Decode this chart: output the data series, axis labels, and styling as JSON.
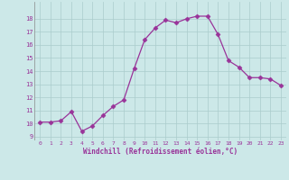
{
  "x": [
    0,
    1,
    2,
    3,
    4,
    5,
    6,
    7,
    8,
    9,
    10,
    11,
    12,
    13,
    14,
    15,
    16,
    17,
    18,
    19,
    20,
    21,
    22,
    23
  ],
  "y": [
    10.1,
    10.1,
    10.2,
    10.9,
    9.4,
    9.8,
    10.6,
    11.3,
    11.8,
    14.2,
    16.4,
    17.3,
    17.9,
    17.7,
    18.0,
    18.2,
    18.2,
    16.8,
    14.8,
    14.3,
    13.5,
    13.5,
    13.4,
    12.9
  ],
  "line_color": "#993399",
  "marker": "D",
  "marker_size": 2.5,
  "bg_color": "#cce8e8",
  "grid_color": "#aacccc",
  "xlabel": "Windchill (Refroidissement éolien,°C)",
  "xlabel_color": "#993399",
  "ylabel_vals": [
    9,
    10,
    11,
    12,
    13,
    14,
    15,
    16,
    17,
    18
  ],
  "ylim": [
    8.7,
    19.3
  ],
  "xlim": [
    -0.5,
    23.5
  ],
  "xtick_labels": [
    "0",
    "1",
    "2",
    "3",
    "4",
    "5",
    "6",
    "7",
    "8",
    "9",
    "10",
    "11",
    "12",
    "13",
    "14",
    "15",
    "16",
    "17",
    "18",
    "19",
    "20",
    "21",
    "22",
    "23"
  ]
}
